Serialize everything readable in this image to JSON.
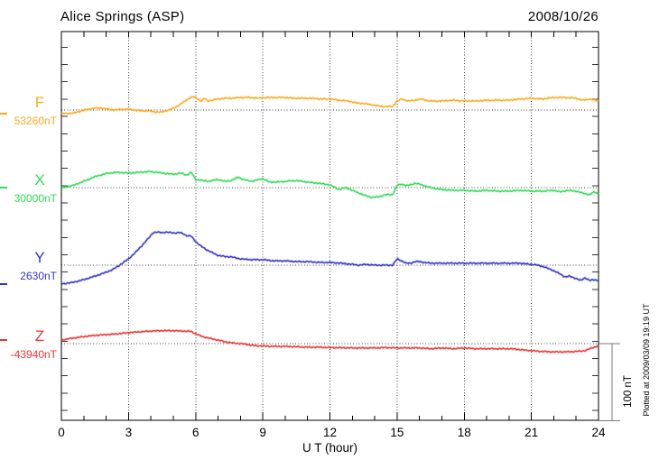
{
  "chart_data": {
    "type": "line",
    "title": "Alice Springs (ASP)",
    "date": "2008/10/26",
    "xlabel": "U T (hour)",
    "units": "nT",
    "x_range": [
      0,
      24
    ],
    "x_ticks": [
      0,
      3,
      6,
      9,
      12,
      15,
      18,
      21,
      24
    ],
    "x_minor_step": 1,
    "grid": "dotted vertical lines every 3 h; dotted horizontal baseline per channel",
    "legend_position": "left margin, stacked per channel",
    "scale_bar": {
      "label": "100 nT",
      "nT": 100
    },
    "plotted_note": "Plotted at 2009/03/09 19:19 UT",
    "series": [
      {
        "name": "F",
        "baseline_label": "53260nT",
        "baseline_value_nT": 53260,
        "color": "#FFA81E",
        "points_h_dnT": [
          [
            0,
            -4.5
          ],
          [
            0.3,
            -4.5
          ],
          [
            0.6,
            -3.5
          ],
          [
            0.9,
            -1
          ],
          [
            1.2,
            1
          ],
          [
            1.5,
            2.5
          ],
          [
            1.8,
            2.5
          ],
          [
            2.1,
            1
          ],
          [
            2.4,
            0
          ],
          [
            2.7,
            1
          ],
          [
            3,
            1
          ],
          [
            3.3,
            0
          ],
          [
            3.6,
            -1
          ],
          [
            3.9,
            -1
          ],
          [
            4.2,
            -2.5
          ],
          [
            4.5,
            -2.5
          ],
          [
            4.8,
            0
          ],
          [
            5.1,
            3.5
          ],
          [
            5.4,
            9
          ],
          [
            5.7,
            15
          ],
          [
            5.9,
            17
          ],
          [
            6.1,
            14
          ],
          [
            6.25,
            11.5
          ],
          [
            6.4,
            15
          ],
          [
            6.55,
            11.5
          ],
          [
            6.7,
            12.5
          ],
          [
            7,
            14
          ],
          [
            7.3,
            15
          ],
          [
            7.6,
            15
          ],
          [
            8,
            16
          ],
          [
            8.4,
            16
          ],
          [
            8.8,
            15
          ],
          [
            9.2,
            16
          ],
          [
            9.6,
            16
          ],
          [
            10,
            16
          ],
          [
            10.4,
            15
          ],
          [
            10.8,
            15
          ],
          [
            11.2,
            15
          ],
          [
            11.6,
            14
          ],
          [
            12,
            14
          ],
          [
            12.4,
            12.5
          ],
          [
            12.8,
            11.5
          ],
          [
            13.2,
            9
          ],
          [
            13.6,
            8
          ],
          [
            14,
            6
          ],
          [
            14.4,
            4.5
          ],
          [
            14.8,
            4.5
          ],
          [
            15,
            11.5
          ],
          [
            15.2,
            14
          ],
          [
            15.5,
            11.5
          ],
          [
            15.8,
            12.5
          ],
          [
            16.1,
            14
          ],
          [
            16.4,
            11.5
          ],
          [
            16.7,
            11.5
          ],
          [
            17,
            11.5
          ],
          [
            17.5,
            12.5
          ],
          [
            18,
            11.5
          ],
          [
            18.5,
            11.5
          ],
          [
            19,
            12.5
          ],
          [
            19.5,
            12.5
          ],
          [
            20,
            12.5
          ],
          [
            20.5,
            14
          ],
          [
            21,
            15
          ],
          [
            21.5,
            14
          ],
          [
            22,
            16
          ],
          [
            22.5,
            16
          ],
          [
            23,
            15
          ],
          [
            23.3,
            12.5
          ],
          [
            23.6,
            14
          ],
          [
            24,
            11.5
          ]
        ]
      },
      {
        "name": "X",
        "baseline_label": "30000nT",
        "baseline_value_nT": 30000,
        "color": "#2EDC55",
        "points_h_dnT": [
          [
            0,
            0
          ],
          [
            0.5,
            2.5
          ],
          [
            1,
            8
          ],
          [
            1.5,
            14
          ],
          [
            2,
            18
          ],
          [
            2.5,
            19.5
          ],
          [
            3,
            18.5
          ],
          [
            3.5,
            19.5
          ],
          [
            4,
            20.5
          ],
          [
            4.5,
            18.5
          ],
          [
            5,
            17
          ],
          [
            5.3,
            18.5
          ],
          [
            5.6,
            16
          ],
          [
            5.8,
            19.5
          ],
          [
            6,
            10.5
          ],
          [
            6.3,
            9
          ],
          [
            6.6,
            8
          ],
          [
            7,
            10.5
          ],
          [
            7.3,
            8
          ],
          [
            7.6,
            9
          ],
          [
            7.9,
            13.5
          ],
          [
            8.1,
            10.5
          ],
          [
            8.5,
            8
          ],
          [
            9,
            11.5
          ],
          [
            9.3,
            7
          ],
          [
            9.6,
            7
          ],
          [
            10,
            8
          ],
          [
            10.5,
            9
          ],
          [
            11,
            7
          ],
          [
            11.5,
            5.5
          ],
          [
            12,
            3.5
          ],
          [
            12.4,
            -2.5
          ],
          [
            12.7,
            0
          ],
          [
            13,
            -3.5
          ],
          [
            13.3,
            -7
          ],
          [
            13.6,
            -10.5
          ],
          [
            13.9,
            -12.5
          ],
          [
            14.2,
            -11.5
          ],
          [
            14.5,
            -9
          ],
          [
            14.8,
            -9
          ],
          [
            15,
            2.5
          ],
          [
            15.2,
            4.5
          ],
          [
            15.4,
            2.5
          ],
          [
            15.6,
            3.5
          ],
          [
            15.8,
            5.5
          ],
          [
            16,
            4.5
          ],
          [
            16.2,
            2.5
          ],
          [
            16.5,
            0
          ],
          [
            17,
            -2.5
          ],
          [
            17.5,
            -3.5
          ],
          [
            18,
            -3.5
          ],
          [
            18.5,
            -4.5
          ],
          [
            19,
            -3.5
          ],
          [
            19.5,
            -4.5
          ],
          [
            20,
            -4.5
          ],
          [
            20.5,
            -3.5
          ],
          [
            21,
            -4.5
          ],
          [
            21.5,
            -4.5
          ],
          [
            22,
            -3.5
          ],
          [
            22.3,
            -5.5
          ],
          [
            22.6,
            -3.5
          ],
          [
            23,
            -4.5
          ],
          [
            23.3,
            -7
          ],
          [
            23.6,
            -9
          ],
          [
            23.8,
            -5.5
          ],
          [
            24,
            -8
          ]
        ]
      },
      {
        "name": "Y",
        "baseline_label": "2630nT",
        "baseline_value_nT": 2630,
        "color": "#3333CC",
        "points_h_dnT": [
          [
            0,
            -24
          ],
          [
            0.5,
            -22
          ],
          [
            1,
            -18.5
          ],
          [
            1.5,
            -14
          ],
          [
            2,
            -9
          ],
          [
            2.3,
            -5.5
          ],
          [
            2.6,
            0
          ],
          [
            3,
            8
          ],
          [
            3.3,
            16
          ],
          [
            3.6,
            25
          ],
          [
            3.9,
            34.5
          ],
          [
            4.1,
            41.5
          ],
          [
            4.3,
            42
          ],
          [
            4.5,
            41.5
          ],
          [
            4.7,
            42
          ],
          [
            4.9,
            41.5
          ],
          [
            5.1,
            41
          ],
          [
            5.3,
            41.5
          ],
          [
            5.45,
            40
          ],
          [
            5.6,
            37.5
          ],
          [
            5.8,
            37
          ],
          [
            6,
            30
          ],
          [
            6.2,
            25
          ],
          [
            6.5,
            19.5
          ],
          [
            6.8,
            15
          ],
          [
            7,
            12.5
          ],
          [
            7.3,
            11
          ],
          [
            7.6,
            10.5
          ],
          [
            8,
            8
          ],
          [
            8.5,
            7
          ],
          [
            9,
            7
          ],
          [
            9.5,
            5.5
          ],
          [
            10,
            5.5
          ],
          [
            10.5,
            4.5
          ],
          [
            11,
            4.5
          ],
          [
            11.5,
            3.5
          ],
          [
            12,
            3.5
          ],
          [
            12.5,
            2.5
          ],
          [
            13,
            1
          ],
          [
            13.3,
            0
          ],
          [
            13.6,
            1
          ],
          [
            14,
            0
          ],
          [
            14.4,
            0
          ],
          [
            14.8,
            0
          ],
          [
            15,
            8
          ],
          [
            15.2,
            5.5
          ],
          [
            15.4,
            2.5
          ],
          [
            15.6,
            2.5
          ],
          [
            15.8,
            4.5
          ],
          [
            16,
            4.5
          ],
          [
            16.2,
            3.5
          ],
          [
            16.5,
            2.5
          ],
          [
            17,
            2.5
          ],
          [
            17.5,
            2.5
          ],
          [
            18,
            2.5
          ],
          [
            19,
            2.5
          ],
          [
            20,
            2.5
          ],
          [
            20.5,
            2.5
          ],
          [
            21,
            1
          ],
          [
            21.3,
            0
          ],
          [
            21.6,
            -2.5
          ],
          [
            22,
            -7
          ],
          [
            22.3,
            -11.5
          ],
          [
            22.5,
            -15
          ],
          [
            22.7,
            -14
          ],
          [
            23,
            -17
          ],
          [
            23.2,
            -19.5
          ],
          [
            23.4,
            -16
          ],
          [
            23.6,
            -19.5
          ],
          [
            23.8,
            -18.5
          ],
          [
            24,
            -19.5
          ]
        ]
      },
      {
        "name": "Z",
        "baseline_label": "-43940nT",
        "baseline_value_nT": -43940,
        "color": "#EE3333",
        "points_h_dnT": [
          [
            0,
            4.5
          ],
          [
            0.5,
            7
          ],
          [
            1,
            9
          ],
          [
            1.5,
            10.5
          ],
          [
            2,
            11.5
          ],
          [
            2.5,
            12.5
          ],
          [
            3,
            14
          ],
          [
            3.5,
            15
          ],
          [
            4,
            16
          ],
          [
            4.5,
            16.5
          ],
          [
            5,
            16.5
          ],
          [
            5.5,
            16
          ],
          [
            5.8,
            15.5
          ],
          [
            6,
            12.5
          ],
          [
            6.3,
            9
          ],
          [
            6.6,
            7
          ],
          [
            7,
            4.5
          ],
          [
            7.3,
            2.5
          ],
          [
            7.6,
            1
          ],
          [
            8,
            0
          ],
          [
            8.3,
            -1
          ],
          [
            8.6,
            -2.5
          ],
          [
            9,
            -3
          ],
          [
            9.5,
            -3.5
          ],
          [
            10,
            -3.5
          ],
          [
            10.5,
            -4
          ],
          [
            11,
            -4.5
          ],
          [
            11.5,
            -4.5
          ],
          [
            12,
            -5
          ],
          [
            13,
            -5.5
          ],
          [
            14,
            -5.5
          ],
          [
            14.5,
            -5
          ],
          [
            15,
            -5.5
          ],
          [
            15.5,
            -5.5
          ],
          [
            16,
            -5.5
          ],
          [
            16.5,
            -6.5
          ],
          [
            17,
            -5.5
          ],
          [
            17.5,
            -6.5
          ],
          [
            18,
            -5.5
          ],
          [
            18.5,
            -6.5
          ],
          [
            19,
            -6.5
          ],
          [
            19.5,
            -6.5
          ],
          [
            20,
            -6.5
          ],
          [
            20.3,
            -7
          ],
          [
            20.6,
            -8
          ],
          [
            21,
            -9
          ],
          [
            21.5,
            -10
          ],
          [
            22,
            -10.5
          ],
          [
            22.5,
            -10.5
          ],
          [
            23,
            -10
          ],
          [
            23.4,
            -9
          ],
          [
            23.7,
            -5.5
          ],
          [
            24,
            -2.5
          ]
        ]
      }
    ]
  }
}
